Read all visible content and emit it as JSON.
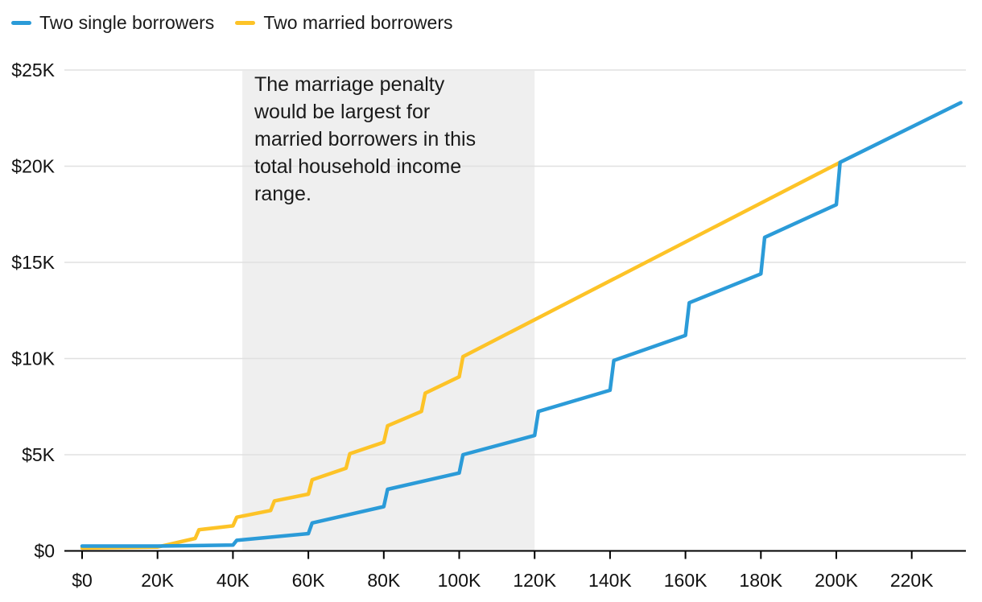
{
  "legend": {
    "items": [
      {
        "label": "Two single borrowers",
        "color": "#2b9bd8"
      },
      {
        "label": "Two married borrowers",
        "color": "#fdc327"
      }
    ]
  },
  "annotation": {
    "text": "The marriage penalty\nwould be largest for\nmarried borrowers in this\ntotal household income\nrange."
  },
  "chart_data": {
    "type": "line",
    "title": "",
    "xlabel": "",
    "ylabel": "",
    "xlim": [
      0,
      233
    ],
    "ylim": [
      0,
      25
    ],
    "grid": "horizontal",
    "legend_position": "top-left",
    "gridline_color": "#e0e0e0",
    "axis_color": "#000000",
    "tick_label_color": "#111111",
    "x_ticks": [
      {
        "v": 0,
        "label": "$0"
      },
      {
        "v": 20,
        "label": "20K"
      },
      {
        "v": 40,
        "label": "40K"
      },
      {
        "v": 60,
        "label": "60K"
      },
      {
        "v": 80,
        "label": "80K"
      },
      {
        "v": 100,
        "label": "100K"
      },
      {
        "v": 120,
        "label": "120K"
      },
      {
        "v": 140,
        "label": "140K"
      },
      {
        "v": 160,
        "label": "160K"
      },
      {
        "v": 180,
        "label": "180K"
      },
      {
        "v": 200,
        "label": "200K"
      },
      {
        "v": 220,
        "label": "220K"
      }
    ],
    "y_ticks": [
      {
        "v": 0,
        "label": "$0"
      },
      {
        "v": 5,
        "label": "$5K"
      },
      {
        "v": 10,
        "label": "$10K"
      },
      {
        "v": 15,
        "label": "$15K"
      },
      {
        "v": 20,
        "label": "$20K"
      },
      {
        "v": 25,
        "label": "$25K"
      }
    ],
    "shaded_region": {
      "x_from": 42.5,
      "x_to": 120,
      "color": "#efefef"
    },
    "series": [
      {
        "name": "Two single borrowers",
        "color": "#2b9bd8",
        "points": [
          [
            0,
            0.25
          ],
          [
            20,
            0.25
          ],
          [
            40,
            0.3
          ],
          [
            41,
            0.55
          ],
          [
            60,
            0.9
          ],
          [
            61,
            1.45
          ],
          [
            80,
            2.3
          ],
          [
            81,
            3.2
          ],
          [
            100,
            4.05
          ],
          [
            101,
            5.0
          ],
          [
            120,
            6.0
          ],
          [
            121,
            7.25
          ],
          [
            140,
            8.35
          ],
          [
            141,
            9.9
          ],
          [
            160,
            11.2
          ],
          [
            161,
            12.9
          ],
          [
            180,
            14.4
          ],
          [
            181,
            16.3
          ],
          [
            200,
            18.0
          ],
          [
            201,
            20.2
          ],
          [
            233,
            23.3
          ]
        ]
      },
      {
        "name": "Two married borrowers",
        "color": "#fdc327",
        "points": [
          [
            0,
            0.15
          ],
          [
            20,
            0.2
          ],
          [
            30,
            0.65
          ],
          [
            31,
            1.1
          ],
          [
            40,
            1.3
          ],
          [
            41,
            1.75
          ],
          [
            50,
            2.1
          ],
          [
            51,
            2.6
          ],
          [
            60,
            2.95
          ],
          [
            61,
            3.7
          ],
          [
            70,
            4.3
          ],
          [
            71,
            5.05
          ],
          [
            80,
            5.65
          ],
          [
            81,
            6.5
          ],
          [
            90,
            7.25
          ],
          [
            91,
            8.2
          ],
          [
            100,
            9.05
          ],
          [
            101,
            10.1
          ],
          [
            201,
            20.2
          ]
        ]
      }
    ]
  }
}
